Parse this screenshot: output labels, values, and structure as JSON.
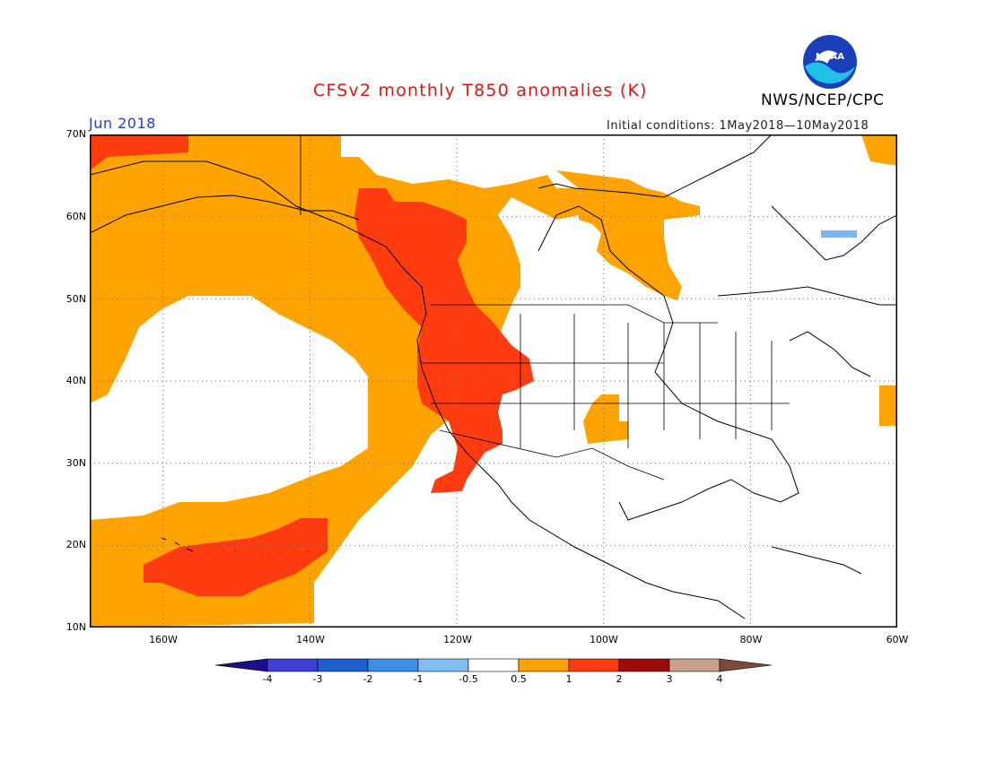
{
  "header": {
    "title": "CFSv2 monthly T850 anomalies (K)",
    "month": "Jun 2018",
    "initial_conditions": "Initial conditions: 1May2018—10May2018",
    "agency": "NWS/NCEP/CPC",
    "logo_text": "NOAA"
  },
  "map": {
    "projection": "cylindrical lat-lon",
    "lon_range": [
      -170,
      -60
    ],
    "lat_range": [
      10,
      70
    ],
    "lat_labels": [
      "70N",
      "60N",
      "50N",
      "40N",
      "30N",
      "20N",
      "10N"
    ],
    "lon_labels": [
      "160W",
      "140W",
      "120W",
      "100W",
      "80W",
      "60W"
    ],
    "gridlines": "dotted",
    "colors": {
      "c_0p5_1": "#ffa300",
      "c_1_2": "#ff3b0f",
      "c_neg1_neg0p5": "#7cb5f0",
      "coast": "#000000"
    }
  },
  "colorbar": {
    "labels": [
      "-4",
      "-3",
      "-2",
      "-1",
      "-0.5",
      "0.5",
      "1",
      "2",
      "3",
      "4"
    ],
    "colors": [
      "#1a0f8c",
      "#4040d0",
      "#1e5fd0",
      "#3f8ee8",
      "#80bef2",
      "#ffffff",
      "#ffa300",
      "#ff3b0f",
      "#9e0b0b",
      "#c8a08c",
      "#7a4a3a"
    ]
  }
}
